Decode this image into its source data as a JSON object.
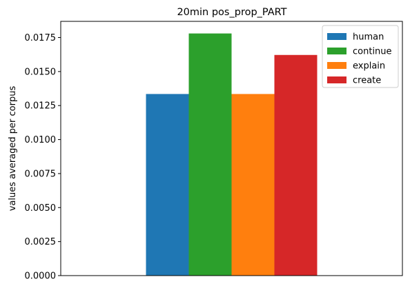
{
  "chart_data": {
    "type": "bar",
    "title": "20min pos_prop_PART",
    "xlabel": "",
    "ylabel": "values averaged per corpus",
    "categories": [
      ""
    ],
    "series": [
      {
        "name": "human",
        "values": [
          0.01335
        ],
        "color": "#1f77b4"
      },
      {
        "name": "continue",
        "values": [
          0.0178
        ],
        "color": "#2ca02c"
      },
      {
        "name": "explain",
        "values": [
          0.01335
        ],
        "color": "#ff7f0e"
      },
      {
        "name": "create",
        "values": [
          0.01622
        ],
        "color": "#d62728"
      }
    ],
    "ylim": [
      0,
      0.01869
    ],
    "yticks": [
      "0.0000",
      "0.0025",
      "0.0050",
      "0.0075",
      "0.0100",
      "0.0125",
      "0.0150",
      "0.0175"
    ],
    "ytick_values": [
      0,
      0.0025,
      0.005,
      0.0075,
      0.01,
      0.0125,
      0.015,
      0.0175
    ],
    "grid": false,
    "legend_position": "top-right"
  }
}
